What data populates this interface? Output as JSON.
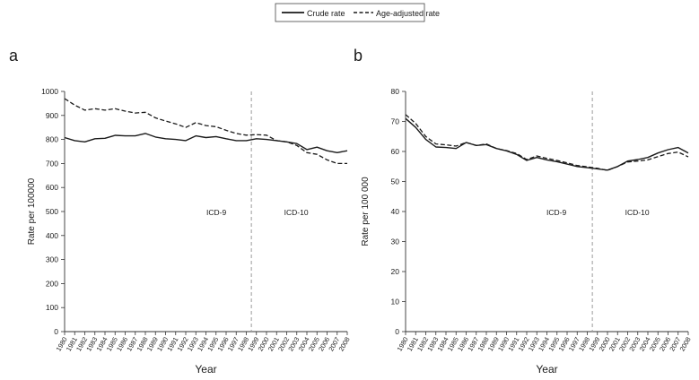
{
  "legend": {
    "crude_label": "Crude rate",
    "adjusted_label": "Age-adjusted rate"
  },
  "chart_data": [
    {
      "panel_label": "a",
      "type": "line",
      "xlabel": "Year",
      "ylabel": "Rate per 100000",
      "ylim": [
        0,
        1000
      ],
      "yticks": [
        0,
        100,
        200,
        300,
        400,
        500,
        600,
        700,
        800,
        900,
        1000
      ],
      "x": [
        1980,
        1981,
        1982,
        1983,
        1984,
        1985,
        1986,
        1987,
        1988,
        1989,
        1990,
        1991,
        1992,
        1993,
        1994,
        1995,
        1996,
        1997,
        1998,
        1999,
        2000,
        2001,
        2002,
        2003,
        2004,
        2005,
        2006,
        2007,
        2008
      ],
      "xtick_labels": [
        "1980",
        "1981",
        "1982",
        "1983",
        "1984",
        "1985",
        "1986",
        "1987",
        "1988",
        "1989",
        "1990",
        "1991",
        "1992",
        "1993",
        "1994",
        "1995",
        "1996",
        "1997",
        "1998",
        "1999",
        "2000",
        "2001",
        "2002",
        "2003",
        "2004",
        "2005",
        "2006",
        "2007",
        "2008"
      ],
      "series": [
        {
          "name": "Crude rate",
          "style": "solid",
          "values": [
            808,
            795,
            790,
            803,
            805,
            817,
            815,
            815,
            825,
            810,
            803,
            800,
            795,
            815,
            808,
            812,
            803,
            795,
            795,
            803,
            800,
            795,
            790,
            783,
            758,
            768,
            753,
            745,
            753
          ]
        },
        {
          "name": "Age-adjusted rate",
          "style": "dashed",
          "values": [
            970,
            943,
            922,
            928,
            922,
            928,
            918,
            910,
            913,
            890,
            877,
            865,
            850,
            870,
            858,
            853,
            838,
            825,
            818,
            820,
            818,
            795,
            790,
            775,
            745,
            738,
            715,
            700,
            700
          ]
        }
      ],
      "divider_x": 1998.5,
      "annotations": [
        "ICD-9",
        "ICD-10"
      ],
      "grid": false
    },
    {
      "panel_label": "b",
      "type": "line",
      "xlabel": "Year",
      "ylabel": "Rate per 100 000",
      "ylim": [
        0,
        80
      ],
      "yticks": [
        0,
        10,
        20,
        30,
        40,
        50,
        60,
        70,
        80
      ],
      "x": [
        1980,
        1981,
        1982,
        1983,
        1984,
        1985,
        1986,
        1987,
        1988,
        1989,
        1990,
        1991,
        1992,
        1993,
        1994,
        1995,
        1996,
        1997,
        1998,
        1999,
        2000,
        2001,
        2002,
        2003,
        2004,
        2005,
        2006,
        2007,
        2008
      ],
      "xtick_labels": [
        "1980",
        "1981",
        "1982",
        "1983",
        "1984",
        "1985",
        "1986",
        "1987",
        "1988",
        "1989",
        "1990",
        "1991",
        "1992",
        "1993",
        "1994",
        "1995",
        "1996",
        "1997",
        "1998",
        "1999",
        "2000",
        "2001",
        "2002",
        "2003",
        "2004",
        "2005",
        "2006",
        "2007",
        "2008"
      ],
      "series": [
        {
          "name": "Crude rate",
          "style": "solid",
          "values": [
            71,
            68,
            64,
            61.5,
            61.3,
            61,
            63,
            62,
            62.3,
            61,
            60.2,
            59,
            57,
            58,
            57.2,
            56.6,
            55.8,
            55,
            54.6,
            54.2,
            53.8,
            55,
            56.8,
            57.3,
            58,
            59.5,
            60.6,
            61.3,
            59.5
          ]
        },
        {
          "name": "Age-adjusted rate",
          "style": "dashed",
          "values": [
            72.3,
            69.3,
            65,
            62.5,
            62.2,
            61.8,
            63,
            62,
            62.5,
            61,
            60.3,
            59.3,
            57.3,
            58.5,
            57.7,
            57,
            56.2,
            55.3,
            54.9,
            54.4,
            53.7,
            55,
            56.5,
            56.8,
            57.2,
            58.3,
            59.3,
            59.8,
            58.2
          ]
        }
      ],
      "divider_x": 1998.5,
      "annotations": [
        "ICD-9",
        "ICD-10"
      ],
      "grid": false
    }
  ]
}
